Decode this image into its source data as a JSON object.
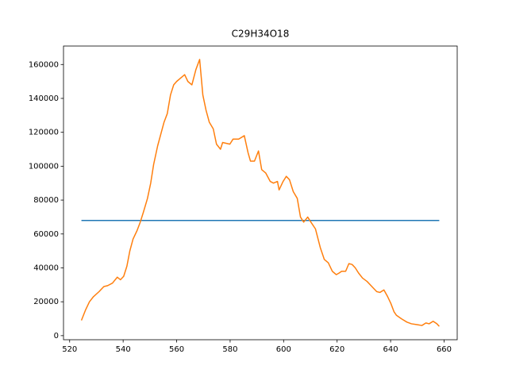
{
  "chart_data": {
    "type": "line",
    "title": "C29H34O18",
    "xlim": [
      517.7,
      664.9
    ],
    "ylim": [
      -2400,
      170900
    ],
    "xticks": [
      520,
      540,
      560,
      580,
      600,
      620,
      640,
      660
    ],
    "yticks": [
      0,
      20000,
      40000,
      60000,
      80000,
      100000,
      120000,
      140000,
      160000
    ],
    "series": [
      {
        "color": "#1f77b4",
        "x": [
          524.4,
          658.2
        ],
        "values": [
          68000,
          68000
        ]
      },
      {
        "color": "#ff7f0e",
        "x": [
          524.4,
          525.9,
          527.4,
          528.9,
          531.0,
          532.8,
          534.2,
          536.0,
          537.8,
          539.0,
          540.2,
          541.4,
          542.5,
          543.7,
          545.2,
          546.4,
          547.6,
          549.1,
          550.3,
          551.4,
          552.9,
          554.1,
          555.3,
          556.5,
          557.7,
          558.9,
          560.0,
          561.5,
          563.0,
          564.2,
          565.7,
          567.2,
          568.6,
          569.8,
          571.0,
          572.2,
          573.7,
          574.9,
          576.4,
          577.2,
          579.9,
          581.1,
          583.2,
          585.3,
          586.7,
          587.6,
          589.1,
          590.6,
          591.8,
          593.3,
          595.0,
          596.2,
          597.7,
          598.3,
          599.8,
          601.0,
          602.2,
          603.6,
          605.1,
          606.3,
          607.5,
          609.0,
          610.2,
          611.9,
          613.7,
          615.2,
          616.7,
          618.2,
          619.7,
          620.8,
          621.7,
          623.2,
          624.4,
          625.6,
          626.8,
          628.0,
          629.5,
          631.2,
          633.0,
          634.8,
          636.0,
          637.5,
          638.9,
          640.1,
          641.3,
          642.2,
          644.0,
          646.1,
          647.8,
          649.9,
          651.7,
          653.2,
          654.4,
          655.9,
          657.3,
          658.2
        ],
        "values": [
          9000,
          15000,
          20000,
          23000,
          26000,
          29000,
          29500,
          31000,
          34500,
          33000,
          35000,
          41000,
          50000,
          57000,
          62000,
          67000,
          73000,
          81000,
          90000,
          101000,
          112000,
          119000,
          126000,
          131000,
          142000,
          148000,
          150000,
          152000,
          154000,
          150000,
          148000,
          157000,
          163000,
          142000,
          133000,
          126000,
          122000,
          113000,
          110000,
          114000,
          113000,
          116000,
          116000,
          118000,
          108000,
          103000,
          103000,
          109000,
          98000,
          96000,
          91000,
          90000,
          91000,
          86000,
          91000,
          94000,
          92000,
          85000,
          81000,
          70000,
          67000,
          70000,
          67000,
          63000,
          52000,
          45000,
          43000,
          38000,
          36000,
          37000,
          38000,
          38000,
          42500,
          42000,
          40000,
          37000,
          34000,
          32000,
          29000,
          26000,
          25500,
          27000,
          23000,
          19000,
          14000,
          12000,
          10000,
          8000,
          7000,
          6500,
          6000,
          7500,
          7000,
          8500,
          7000,
          5500
        ]
      }
    ]
  }
}
